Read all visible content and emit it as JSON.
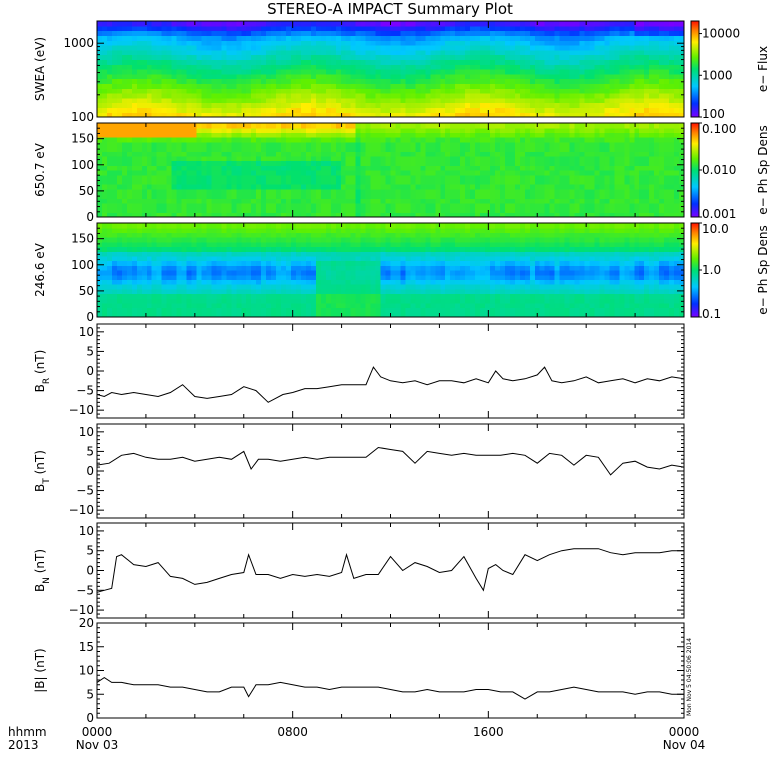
{
  "title": "STEREO-A IMPACT Summary Plot",
  "time_axis": {
    "row1_label": "hhmm",
    "row2_label": "2013",
    "ticks": [
      {
        "t": 0,
        "top": "0000",
        "bottom": "Nov 03"
      },
      {
        "t": 8,
        "top": "0800",
        "bottom": ""
      },
      {
        "t": 16,
        "top": "1600",
        "bottom": ""
      },
      {
        "t": 24,
        "top": "0000",
        "bottom": "Nov 04"
      }
    ]
  },
  "stamp": "Mon Nov  5 04:50:06 2014",
  "chart_data": [
    {
      "type": "heatmap",
      "panel": "swea",
      "ylabel": "SWEA (eV)",
      "ylog": true,
      "ylim": [
        100,
        2000
      ],
      "yticks": [
        {
          "v": 100,
          "label": "100"
        },
        {
          "v": 1000,
          "label": "1000"
        }
      ],
      "xlim": [
        0,
        24
      ],
      "colorbar": {
        "label": "e− Flux",
        "log": true,
        "range": [
          100,
          20000
        ],
        "ticks": [
          {
            "v": 100,
            "label": "100"
          },
          {
            "v": 1000,
            "label": "1000"
          },
          {
            "v": 10000,
            "label": "10000"
          }
        ]
      }
    },
    {
      "type": "heatmap",
      "panel": "pad650",
      "ylabel": "650.7 eV",
      "ylim": [
        0,
        180
      ],
      "yticks": [
        {
          "v": 0,
          "label": "0"
        },
        {
          "v": 50,
          "label": "50"
        },
        {
          "v": 100,
          "label": "100"
        },
        {
          "v": 150,
          "label": "150"
        }
      ],
      "xlim": [
        0,
        24
      ],
      "colorbar": {
        "label": "e− Ph Sp Dens",
        "log": true,
        "range": [
          0.001,
          0.1
        ],
        "ticks": [
          {
            "v": 0.001,
            "label": "0.001"
          },
          {
            "v": 0.01,
            "label": "0.010"
          },
          {
            "v": 0.1,
            "label": "0.100"
          }
        ]
      }
    },
    {
      "type": "heatmap",
      "panel": "pad246",
      "ylabel": "246.6 eV",
      "ylim": [
        0,
        180
      ],
      "yticks": [
        {
          "v": 0,
          "label": "0"
        },
        {
          "v": 50,
          "label": "50"
        },
        {
          "v": 100,
          "label": "100"
        },
        {
          "v": 150,
          "label": "150"
        }
      ],
      "xlim": [
        0,
        24
      ],
      "colorbar": {
        "label": "e− Ph Sp Dens",
        "log": true,
        "range": [
          0.1,
          10
        ],
        "ticks": [
          {
            "v": 0.1,
            "label": "0.1"
          },
          {
            "v": 1,
            "label": "1.0"
          },
          {
            "v": 10,
            "label": "10.0"
          }
        ]
      }
    },
    {
      "type": "line",
      "panel": "br",
      "ylabel": "B",
      "ysub": "R",
      "yunit": " (nT)",
      "ylim": [
        -12,
        12
      ],
      "yticks": [
        {
          "v": -10,
          "label": "−10"
        },
        {
          "v": -5,
          "label": "−5"
        },
        {
          "v": 0,
          "label": "0"
        },
        {
          "v": 5,
          "label": "5"
        },
        {
          "v": 10,
          "label": "10"
        }
      ],
      "xlim": [
        0,
        24
      ],
      "x": [
        0,
        0.3,
        0.6,
        1,
        1.5,
        2,
        2.5,
        3,
        3.5,
        4,
        4.5,
        5,
        5.5,
        6,
        6.5,
        7,
        7.3,
        7.6,
        8,
        8.5,
        9,
        9.5,
        10,
        10.5,
        11,
        11.3,
        11.6,
        12,
        12.5,
        13,
        13.5,
        14,
        14.5,
        15,
        15.5,
        16,
        16.3,
        16.6,
        17,
        17.5,
        18,
        18.3,
        18.6,
        19,
        19.5,
        20,
        20.5,
        21,
        21.5,
        22,
        22.5,
        23,
        23.5,
        24
      ],
      "y": [
        -6,
        -6.5,
        -5.5,
        -6,
        -5.5,
        -6,
        -6.5,
        -5.5,
        -3.5,
        -6.5,
        -7,
        -6.5,
        -6,
        -4,
        -5,
        -8,
        -7,
        -6,
        -5.5,
        -4.5,
        -4.5,
        -4,
        -3.5,
        -3.5,
        -3.5,
        1,
        -1.5,
        -2.5,
        -3,
        -2.5,
        -3.5,
        -2.5,
        -2.5,
        -3,
        -2,
        -3,
        0,
        -2,
        -2.5,
        -2,
        -1,
        1,
        -2.5,
        -3,
        -2.5,
        -1.5,
        -3,
        -2.5,
        -2,
        -3,
        -2,
        -2.5,
        -1.5,
        -2
      ]
    },
    {
      "type": "line",
      "panel": "bt",
      "ylabel": "B",
      "ysub": "T",
      "yunit": " (nT)",
      "ylim": [
        -12,
        12
      ],
      "yticks": [
        {
          "v": -10,
          "label": "−10"
        },
        {
          "v": -5,
          "label": "−5"
        },
        {
          "v": 0,
          "label": "0"
        },
        {
          "v": 5,
          "label": "5"
        },
        {
          "v": 10,
          "label": "10"
        }
      ],
      "xlim": [
        0,
        24
      ],
      "x": [
        0,
        0.5,
        1,
        1.5,
        2,
        2.5,
        3,
        3.5,
        4,
        4.5,
        5,
        5.5,
        6,
        6.3,
        6.6,
        7,
        7.5,
        8,
        8.5,
        9,
        9.5,
        10,
        10.5,
        11,
        11.5,
        12,
        12.5,
        13,
        13.5,
        14,
        14.5,
        15,
        15.5,
        16,
        16.5,
        17,
        17.5,
        18,
        18.5,
        19,
        19.5,
        20,
        20.5,
        21,
        21.5,
        22,
        22.5,
        23,
        23.5,
        24
      ],
      "y": [
        1.5,
        2,
        4,
        4.5,
        3.5,
        3,
        3,
        3.5,
        2.5,
        3,
        3.5,
        3,
        5,
        0.5,
        3,
        3,
        2.5,
        3,
        3.5,
        3,
        3.5,
        3.5,
        3.5,
        3.5,
        6,
        5.5,
        5,
        2,
        5,
        4.5,
        4,
        4.5,
        4,
        4,
        4,
        4.5,
        4,
        2,
        4.5,
        4,
        1.5,
        4,
        3.5,
        -1,
        2,
        2.5,
        1,
        0.5,
        1.5,
        1
      ]
    },
    {
      "type": "line",
      "panel": "bn",
      "ylabel": "B",
      "ysub": "N",
      "yunit": " (nT)",
      "ylim": [
        -12,
        12
      ],
      "yticks": [
        {
          "v": -10,
          "label": "−10"
        },
        {
          "v": -5,
          "label": "−5"
        },
        {
          "v": 0,
          "label": "0"
        },
        {
          "v": 5,
          "label": "5"
        },
        {
          "v": 10,
          "label": "10"
        }
      ],
      "xlim": [
        0,
        24
      ],
      "x": [
        0,
        0.3,
        0.6,
        0.8,
        1,
        1.5,
        2,
        2.5,
        3,
        3.5,
        4,
        4.5,
        5,
        5.5,
        6,
        6.2,
        6.5,
        7,
        7.5,
        8,
        8.5,
        9,
        9.5,
        10,
        10.2,
        10.5,
        11,
        11.5,
        12,
        12.5,
        13,
        13.5,
        14,
        14.5,
        15,
        15.5,
        15.8,
        16,
        16.3,
        16.6,
        17,
        17.5,
        18,
        18.5,
        19,
        19.5,
        20,
        20.5,
        21,
        21.5,
        22,
        22.5,
        23,
        23.5,
        24
      ],
      "y": [
        -5.5,
        -5,
        -4.5,
        3.5,
        4,
        1.5,
        1,
        2,
        -1.5,
        -2,
        -3.5,
        -3,
        -2,
        -1,
        -0.5,
        4,
        -1,
        -1,
        -2,
        -1,
        -1.5,
        -1,
        -1.5,
        -0.5,
        4,
        -2,
        -1,
        -1,
        3.5,
        0,
        2,
        1,
        -0.5,
        0,
        3.5,
        -2,
        -5,
        0.5,
        1.5,
        0,
        -1,
        4,
        2.5,
        4,
        5,
        5.5,
        5.5,
        5.5,
        4.5,
        4,
        4.5,
        4.5,
        4.5,
        5,
        5
      ]
    },
    {
      "type": "line",
      "panel": "bmag",
      "ylabel": "|B|",
      "ysub": "",
      "yunit": " (nT)",
      "ylim": [
        0,
        20
      ],
      "yticks": [
        {
          "v": 0,
          "label": "0"
        },
        {
          "v": 5,
          "label": "5"
        },
        {
          "v": 10,
          "label": "10"
        },
        {
          "v": 15,
          "label": "15"
        },
        {
          "v": 20,
          "label": "20"
        }
      ],
      "xlim": [
        0,
        24
      ],
      "x": [
        0,
        0.3,
        0.6,
        1,
        1.5,
        2,
        2.5,
        3,
        3.5,
        4,
        4.5,
        5,
        5.5,
        6,
        6.2,
        6.5,
        7,
        7.5,
        8,
        8.5,
        9,
        9.5,
        10,
        10.5,
        11,
        11.5,
        12,
        12.5,
        13,
        13.5,
        14,
        14.5,
        15,
        15.5,
        16,
        16.5,
        17,
        17.5,
        18,
        18.5,
        19,
        19.5,
        20,
        20.5,
        21,
        21.5,
        22,
        22.5,
        23,
        23.5,
        24
      ],
      "y": [
        7.5,
        8.5,
        7.5,
        7.5,
        7,
        7,
        7,
        6.5,
        6.5,
        6,
        5.5,
        5.5,
        6.5,
        6.5,
        4.5,
        7,
        7,
        7.5,
        7,
        6.5,
        6.5,
        6,
        6.5,
        6.5,
        6.5,
        6.5,
        6,
        5.5,
        5.5,
        6,
        5.5,
        5.5,
        5.5,
        6,
        6,
        5.5,
        5.5,
        4,
        5.5,
        5.5,
        6,
        6.5,
        6,
        5.5,
        5.5,
        5.5,
        5,
        5.5,
        5.5,
        5,
        5
      ]
    }
  ]
}
